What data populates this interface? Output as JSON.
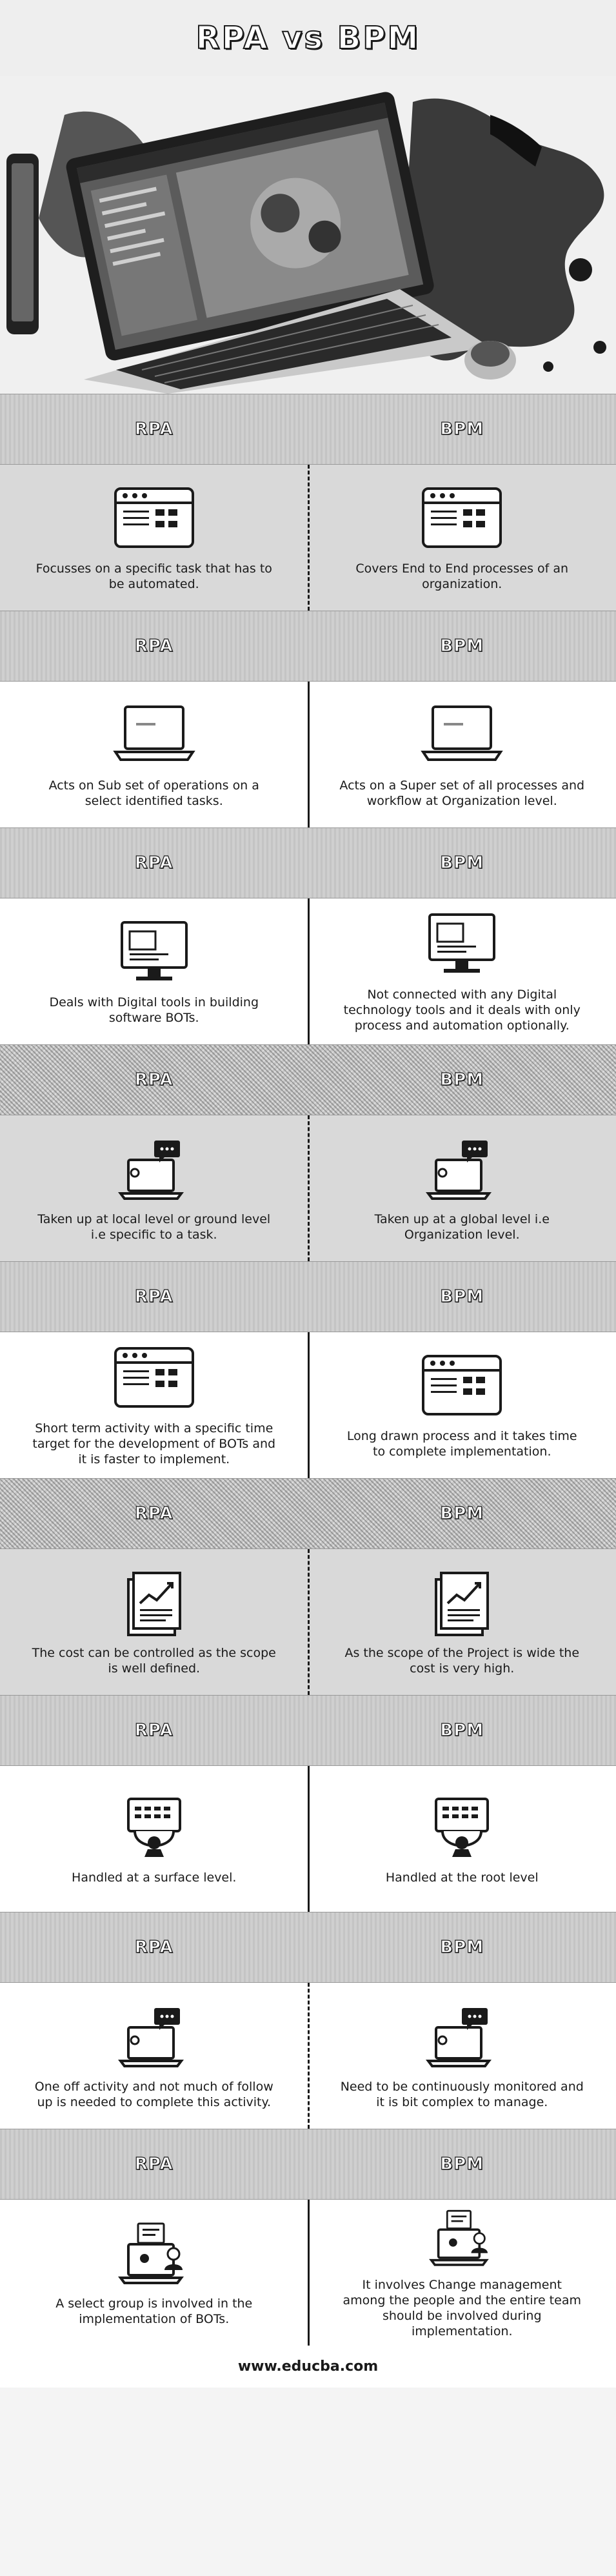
{
  "title": "RPA vs BPM",
  "colors": {
    "ink": "#1a1a1a",
    "header": "#cfcfcf",
    "panel": "#ffffff"
  },
  "rows": [
    {
      "left_head": "RPA",
      "right_head": "BPM",
      "left": "Focusses on a specific task that has to be automated.",
      "right": "Covers End to End processes of an organization.",
      "icon": "dashboard-icon"
    },
    {
      "left_head": "RPA",
      "right_head": "BPM",
      "left": "Acts on Sub set of operations on a select identified tasks.",
      "right": "Acts on a Super set of all processes and workflow at Organization level.",
      "icon": "laptop-icon"
    },
    {
      "left_head": "RPA",
      "right_head": "BPM",
      "left": "Deals with Digital tools in building software BOTs.",
      "right": "Not connected with any Digital technology tools and it deals with only process and automation optionally.",
      "icon": "monitor-icon"
    },
    {
      "left_head": "RPA",
      "right_head": "BPM",
      "left": "Taken up at local level or ground level i.e specific to a task.",
      "right": "Taken up at a global level i.e Organization level.",
      "icon": "laptop-chat-icon"
    },
    {
      "left_head": "RPA",
      "right_head": "BPM",
      "left": "Short term activity with a specific time target for the development of BOTs and it is faster to implement.",
      "right": "Long drawn process and it takes time to complete implementation.",
      "icon": "dashboard-icon"
    },
    {
      "left_head": "RPA",
      "right_head": "BPM",
      "left": "The cost can be controlled as the scope is well defined.",
      "right": "As the scope of the Project is wide the cost is very high.",
      "icon": "report-chart-icon"
    },
    {
      "left_head": "RPA",
      "right_head": "BPM",
      "left": "Handled at a surface level.",
      "right": "Handled at the root level",
      "icon": "hands-laptop-icon"
    },
    {
      "left_head": "RPA",
      "right_head": "BPM",
      "left": "One off activity and not much of follow up is needed to complete this activity.",
      "right": "Need to be continuously monitored and it is bit complex to manage.",
      "icon": "laptop-chat-icon"
    },
    {
      "left_head": "RPA",
      "right_head": "BPM",
      "left": "A select group is involved in the implementation of BOTs.",
      "right": "It involves Change management among the people and the entire team should be involved during implementation.",
      "icon": "team-laptop-icon"
    }
  ],
  "footer": "www.educba.com"
}
